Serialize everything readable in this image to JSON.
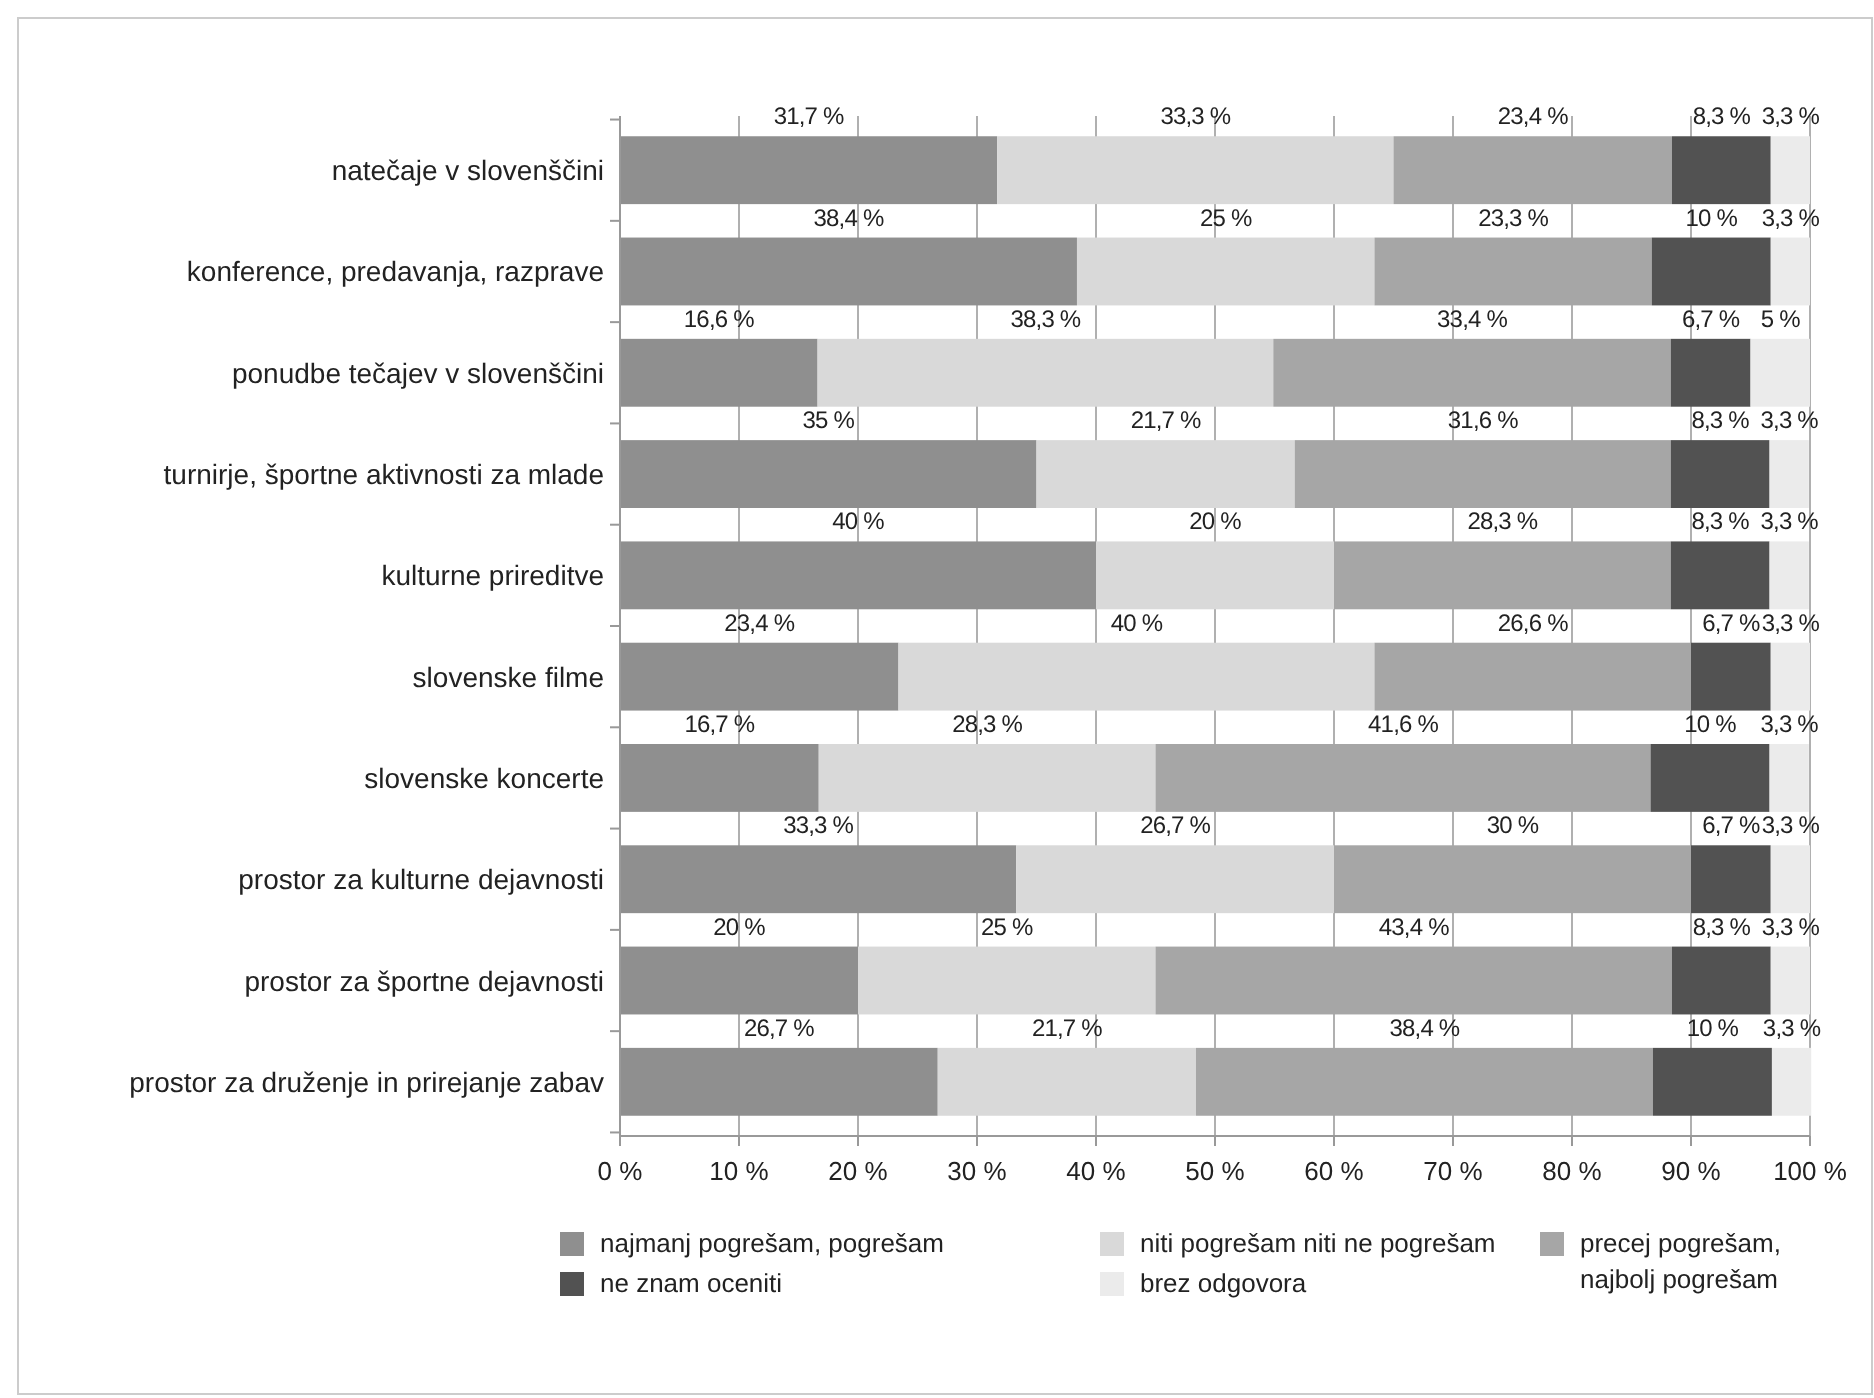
{
  "chart_data": {
    "type": "bar",
    "orientation": "horizontal",
    "stacked": true,
    "grid": "x",
    "legend": "bottom",
    "categories": [
      "natečaje v slovenščini",
      "konference, predavanja, razprave",
      "ponudbe tečajev v slovenščini",
      "turnirje, športne aktivnosti za mlade",
      "kulturne prireditve",
      "slovenske filme",
      "slovenske koncerte",
      "prostor za kulturne dejavnosti",
      "prostor za športne dejavnosti",
      "prostor za druženje in prirejanje zabav"
    ],
    "xlim": [
      0,
      100
    ],
    "xticks": [
      {
        "value": 0,
        "label": "0 %"
      },
      {
        "value": 10,
        "label": "10 %"
      },
      {
        "value": 20,
        "label": "20 %"
      },
      {
        "value": 30,
        "label": "30 %"
      },
      {
        "value": 40,
        "label": "40 %"
      },
      {
        "value": 50,
        "label": "50 %"
      },
      {
        "value": 60,
        "label": "60 %"
      },
      {
        "value": 70,
        "label": "70 %"
      },
      {
        "value": 80,
        "label": "80 %"
      },
      {
        "value": 90,
        "label": "90 %"
      },
      {
        "value": 100,
        "label": "100 %"
      }
    ],
    "series": [
      {
        "name": "najmanj pogrešam, pogrešam",
        "color": "#8f8f8f",
        "values": [
          31.7,
          38.4,
          16.6,
          35,
          40,
          23.4,
          16.7,
          33.3,
          20,
          26.7
        ],
        "value_labels": [
          "31,7 %",
          "38,4 %",
          "16,6 %",
          "35 %",
          "40 %",
          "23,4 %",
          "16,7 %",
          "33,3 %",
          "20 %",
          "26,7 %"
        ]
      },
      {
        "name": "niti pogrešam niti ne pogrešam",
        "color": "#d9d9d9",
        "values": [
          33.3,
          25,
          38.3,
          21.7,
          20,
          40,
          28.3,
          26.7,
          25,
          21.7
        ],
        "value_labels": [
          "33,3 %",
          "25 %",
          "38,3 %",
          "21,7 %",
          "20 %",
          "40 %",
          "28,3 %",
          "26,7 %",
          "25 %",
          "21,7 %"
        ]
      },
      {
        "name": "precej pogrešam, najbolj pogrešam",
        "color": "#a6a6a6",
        "values": [
          23.4,
          23.3,
          33.4,
          31.6,
          28.3,
          26.6,
          41.6,
          30,
          43.4,
          38.4
        ],
        "value_labels": [
          "23,4 %",
          "23,3 %",
          "33,4 %",
          "31,6 %",
          "28,3 %",
          "26,6 %",
          "41,6 %",
          "30 %",
          "43,4 %",
          "38,4 %"
        ]
      },
      {
        "name": "ne znam oceniti",
        "color": "#525252",
        "values": [
          8.3,
          10,
          6.7,
          8.3,
          8.3,
          6.7,
          10,
          6.7,
          8.3,
          10
        ],
        "value_labels": [
          "8,3 %",
          "10 %",
          "6,7 %",
          "8,3 %",
          "8,3 %",
          "6,7 %",
          "10 %",
          "6,7 %",
          "8,3 %",
          "10 %"
        ]
      },
      {
        "name": "brez odgovora",
        "color": "#ebebeb",
        "values": [
          3.3,
          3.3,
          5,
          3.3,
          3.3,
          3.3,
          3.3,
          3.3,
          3.3,
          3.3
        ],
        "value_labels": [
          "3,3 %",
          "3,3 %",
          "5 %",
          "3,3 %",
          "3,3 %",
          "3,3 %",
          "3,3 %",
          "3,3 %",
          "3,3 %",
          "3,3 %"
        ]
      }
    ]
  }
}
